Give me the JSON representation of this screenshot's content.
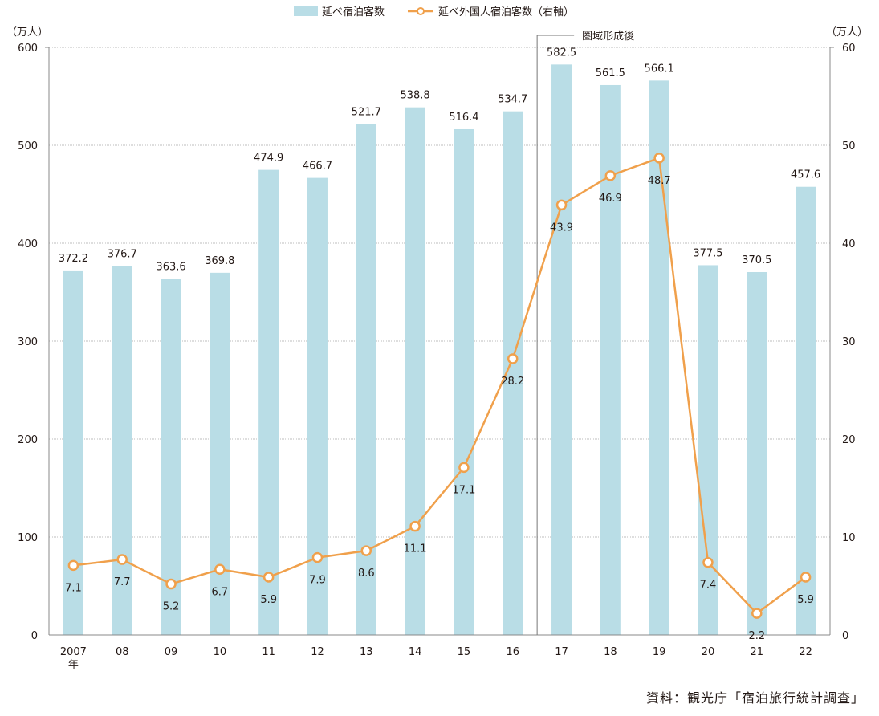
{
  "source": "資料：観光庁「宿泊旅行統計調査」",
  "chart_data": {
    "type": "bar",
    "categories": [
      "2007",
      "08",
      "09",
      "10",
      "11",
      "12",
      "13",
      "14",
      "15",
      "16",
      "17",
      "18",
      "19",
      "20",
      "21",
      "22"
    ],
    "first_category_suffix": "年",
    "series": [
      {
        "name": "延べ宿泊客数",
        "type": "bar",
        "axis": "left",
        "color": "#b9dde6",
        "values": [
          372.2,
          376.7,
          363.6,
          369.8,
          474.9,
          466.7,
          521.7,
          538.8,
          516.4,
          534.7,
          582.5,
          561.5,
          566.1,
          377.5,
          370.5,
          457.6
        ],
        "labels": [
          "372.2",
          "376.7",
          "363.6",
          "369.8",
          "474.9",
          "466.7",
          "521.7",
          "538.8",
          "516.4",
          "534.7",
          "582.5",
          "561.5",
          "566.1",
          "377.5",
          "370.5",
          "457.6"
        ]
      },
      {
        "name": "延べ外国人宿泊客数（右軸）",
        "type": "line",
        "axis": "right",
        "color": "#f0a04b",
        "values": [
          7.1,
          7.7,
          5.2,
          6.7,
          5.9,
          7.9,
          8.6,
          11.1,
          17.1,
          28.2,
          43.9,
          46.9,
          48.7,
          7.4,
          2.2,
          5.9
        ],
        "labels": [
          "7.1",
          "7.7",
          "5.2",
          "6.7",
          "5.9",
          "7.9",
          "8.6",
          "11.1",
          "17.1",
          "28.2",
          "43.9",
          "46.9",
          "48.7",
          "7.4",
          "2.2",
          "5.9"
        ]
      }
    ],
    "left_axis": {
      "unit": "（万人）",
      "ylim": [
        0,
        600
      ],
      "ticks": [
        "0",
        "100",
        "200",
        "300",
        "400",
        "500",
        "600"
      ]
    },
    "right_axis": {
      "unit": "（万人）",
      "ylim": [
        0,
        60
      ],
      "ticks": [
        "0",
        "10",
        "20",
        "30",
        "40",
        "50",
        "60"
      ]
    },
    "annotation": {
      "text": "圏域形成後",
      "before_category": "17"
    },
    "grid": true,
    "legend_position": "top-center"
  }
}
